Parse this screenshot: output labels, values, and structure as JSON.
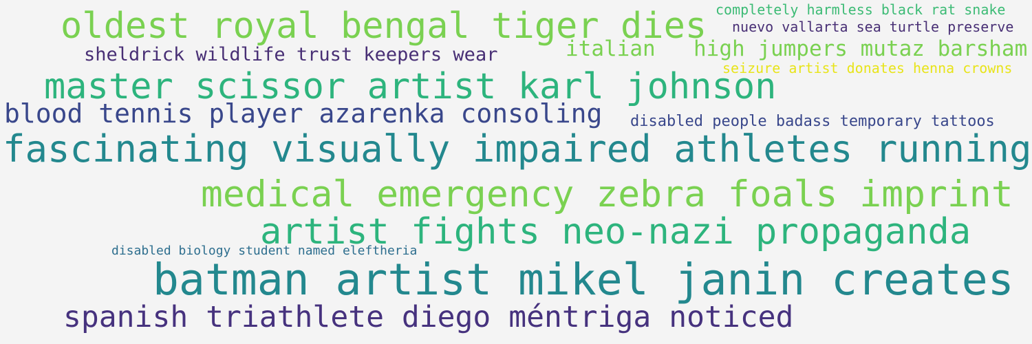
{
  "words": [
    {
      "text": "oldest royal bengal tiger dies",
      "color": "#7ad151"
    },
    {
      "text": "completely harmless black rat snake",
      "color": "#3cbb75"
    },
    {
      "text": "nuevo vallarta sea turtle preserve",
      "color": "#482f75"
    },
    {
      "text": "sheldrick wildlife trust keepers wear",
      "color": "#482f75"
    },
    {
      "text": "italian",
      "color": "#7ad151"
    },
    {
      "text": "high jumpers mutaz barsham",
      "color": "#7ad151"
    },
    {
      "text": "seizure artist donates henna crowns",
      "color": "#e8e419"
    },
    {
      "text": "master scissor artist karl johnson",
      "color": "#2db47d"
    },
    {
      "text": "blood tennis player azarenka consoling",
      "color": "#39478b"
    },
    {
      "text": "disabled people badass temporary tattoos",
      "color": "#39478b"
    },
    {
      "text": "fascinating visually impaired athletes running",
      "color": "#23888e"
    },
    {
      "text": "medical emergency zebra foals imprint",
      "color": "#7ad151"
    },
    {
      "text": "artist fights neo-nazi propaganda",
      "color": "#2db47d"
    },
    {
      "text": "disabled biology student named eleftheria",
      "color": "#2d6e8e"
    },
    {
      "text": "batman artist mikel janin creates",
      "color": "#23888e"
    },
    {
      "text": "spanish triathlete diego méntriga noticed",
      "color": "#46327e"
    }
  ]
}
